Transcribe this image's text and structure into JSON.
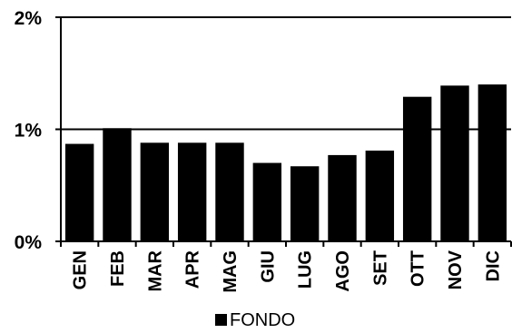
{
  "chart_data": {
    "type": "bar",
    "title": "",
    "xlabel": "",
    "ylabel": "",
    "categories": [
      "GEN",
      "FEB",
      "MAR",
      "APR",
      "MAG",
      "GIU",
      "LUG",
      "AGO",
      "SET",
      "OTT",
      "NOV",
      "DIC"
    ],
    "series": [
      {
        "name": "FONDO",
        "color": "#000000",
        "values": [
          0.87,
          1.01,
          0.88,
          0.88,
          0.88,
          0.7,
          0.67,
          0.77,
          0.81,
          1.29,
          1.39,
          1.4
        ]
      }
    ],
    "ylim": [
      0,
      2
    ],
    "yticks": [
      0,
      1,
      2
    ],
    "ytick_labels": [
      "0%",
      "1%",
      "2%"
    ],
    "grid": "horizontal",
    "legend": {
      "position": "bottom-center",
      "entries": [
        "FONDO"
      ]
    }
  }
}
